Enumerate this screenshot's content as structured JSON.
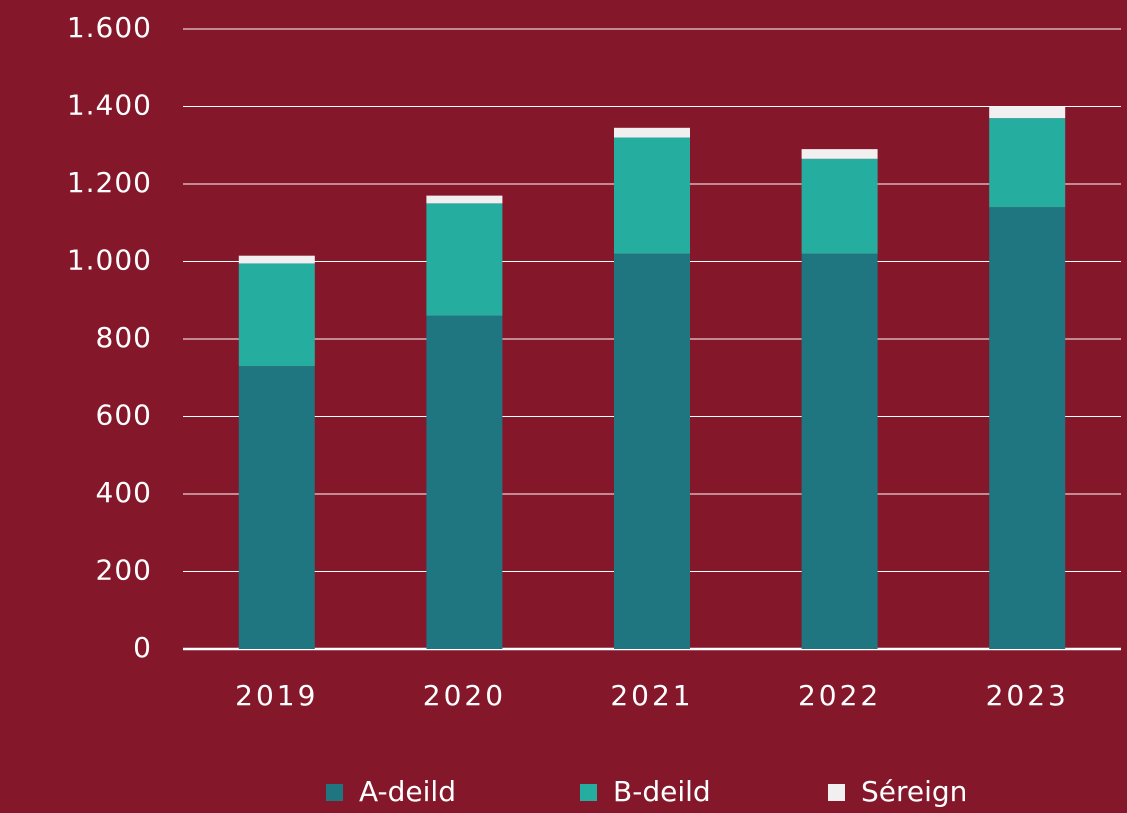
{
  "chart_data": {
    "type": "stacked_bar",
    "categories": [
      "2019",
      "2020",
      "2021",
      "2022",
      "2023"
    ],
    "series": [
      {
        "name": "A-deild",
        "color": "#1f7580",
        "values": [
          730,
          860,
          1020,
          1020,
          1140
        ]
      },
      {
        "name": "B-deild",
        "color": "#25ae9f",
        "values": [
          265,
          290,
          300,
          245,
          230
        ]
      },
      {
        "name": "Séreign",
        "color": "#f1eff0",
        "values": [
          20,
          20,
          25,
          25,
          30
        ]
      }
    ],
    "ylim": [
      0,
      1600
    ],
    "yticks": [
      0,
      200,
      400,
      600,
      800,
      {
        "value": 1000,
        "label": "1.000"
      },
      {
        "value": 1200,
        "label": "1.200"
      },
      {
        "value": 1400,
        "label": "1.400"
      },
      {
        "value": 1600,
        "label": "1.600"
      }
    ],
    "grid": true,
    "legend": "bottom"
  }
}
